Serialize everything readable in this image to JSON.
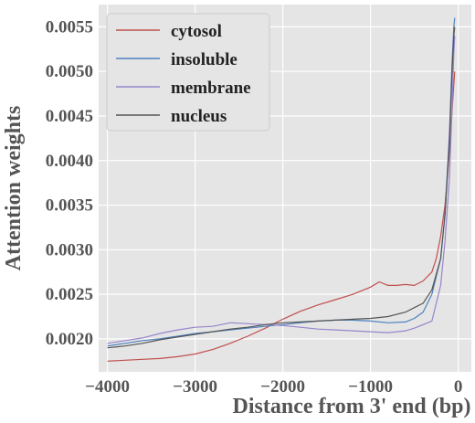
{
  "chart_data": {
    "type": "line",
    "xlabel": "Distance from 3' end (bp)",
    "ylabel": "Attention weights",
    "xlim": [
      -4100,
      150
    ],
    "ylim": [
      0.00163,
      0.00575
    ],
    "x_ticks": [
      -4000,
      -3000,
      -2000,
      -1000,
      0
    ],
    "x_tick_labels": [
      "−4000",
      "−3000",
      "−2000",
      "−1000",
      "0"
    ],
    "y_ticks": [
      0.002,
      0.0025,
      0.003,
      0.0035,
      0.004,
      0.0045,
      0.005,
      0.0055
    ],
    "y_tick_labels": [
      "0.0020",
      "0.0025",
      "0.0030",
      "0.0035",
      "0.0040",
      "0.0045",
      "0.0050",
      "0.0055"
    ],
    "grid": true,
    "legend_position": "top-left",
    "colors": {
      "background": "#e5e5e5",
      "grid": "#ffffff"
    },
    "series": [
      {
        "name": "cytosol",
        "color": "#c0504d",
        "x": [
          -4000,
          -3800,
          -3600,
          -3400,
          -3200,
          -3000,
          -2800,
          -2600,
          -2400,
          -2200,
          -2000,
          -1800,
          -1600,
          -1400,
          -1200,
          -1000,
          -900,
          -800,
          -700,
          -600,
          -500,
          -400,
          -300,
          -250,
          -200,
          -150,
          -100,
          -80,
          -60,
          -40
        ],
        "y": [
          0.00175,
          0.00176,
          0.00177,
          0.00178,
          0.0018,
          0.00183,
          0.00188,
          0.00195,
          0.00203,
          0.00212,
          0.00222,
          0.00231,
          0.00238,
          0.00244,
          0.0025,
          0.00258,
          0.00264,
          0.0026,
          0.0026,
          0.00261,
          0.0026,
          0.00265,
          0.00275,
          0.0029,
          0.00315,
          0.0035,
          0.0041,
          0.0044,
          0.0047,
          0.005
        ]
      },
      {
        "name": "insoluble",
        "color": "#4f81bd",
        "x": [
          -4000,
          -3800,
          -3600,
          -3400,
          -3200,
          -3000,
          -2800,
          -2600,
          -2400,
          -2200,
          -2000,
          -1800,
          -1600,
          -1400,
          -1200,
          -1000,
          -800,
          -600,
          -500,
          -400,
          -300,
          -200,
          -150,
          -100,
          -70,
          -50,
          -40
        ],
        "y": [
          0.00192,
          0.00195,
          0.00198,
          0.002,
          0.00203,
          0.00206,
          0.00208,
          0.0021,
          0.00212,
          0.00214,
          0.00216,
          0.00218,
          0.0022,
          0.00221,
          0.00221,
          0.0022,
          0.00218,
          0.00219,
          0.00223,
          0.0023,
          0.0025,
          0.0029,
          0.0034,
          0.0043,
          0.0051,
          0.0055,
          0.0056
        ]
      },
      {
        "name": "membrane",
        "color": "#9785cc",
        "x": [
          -4000,
          -3800,
          -3600,
          -3400,
          -3200,
          -3000,
          -2800,
          -2600,
          -2400,
          -2200,
          -2000,
          -1800,
          -1600,
          -1400,
          -1200,
          -1000,
          -800,
          -600,
          -500,
          -400,
          -300,
          -200,
          -150,
          -100,
          -70,
          -50,
          -40
        ],
        "y": [
          0.00195,
          0.00198,
          0.00201,
          0.00206,
          0.0021,
          0.00213,
          0.00214,
          0.00218,
          0.00217,
          0.00216,
          0.00215,
          0.00213,
          0.00211,
          0.0021,
          0.00209,
          0.00208,
          0.00207,
          0.00209,
          0.00212,
          0.00216,
          0.0022,
          0.0026,
          0.0031,
          0.0038,
          0.0046,
          0.0052,
          0.0054
        ]
      },
      {
        "name": "nucleus",
        "color": "#555555",
        "x": [
          -4000,
          -3800,
          -3600,
          -3400,
          -3200,
          -3000,
          -2800,
          -2600,
          -2400,
          -2200,
          -2000,
          -1800,
          -1600,
          -1400,
          -1200,
          -1000,
          -800,
          -600,
          -500,
          -400,
          -300,
          -200,
          -150,
          -100,
          -70,
          -50,
          -40
        ],
        "y": [
          0.0019,
          0.00192,
          0.00195,
          0.00199,
          0.00202,
          0.00205,
          0.00208,
          0.00211,
          0.00213,
          0.00216,
          0.00218,
          0.00219,
          0.0022,
          0.00221,
          0.00222,
          0.00223,
          0.00225,
          0.0023,
          0.00235,
          0.0024,
          0.00255,
          0.0029,
          0.0034,
          0.0042,
          0.005,
          0.0054,
          0.0055
        ]
      }
    ]
  }
}
